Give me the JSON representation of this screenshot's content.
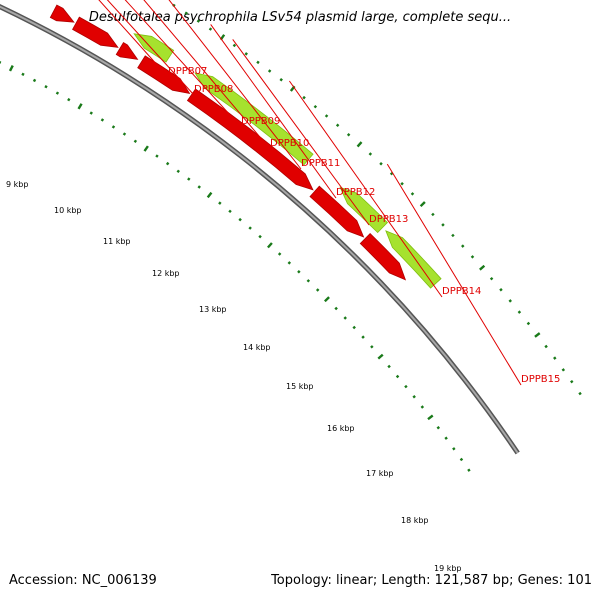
{
  "title": "Desulfotalea psychrophila LSv54 plasmid large, complete sequ...",
  "footer": {
    "accession": "Accession: NC_006139",
    "summary": "Topology: linear; Length: 121,587 bp; Genes: 101"
  },
  "colors": {
    "gene_red": "#e00000",
    "gene_green": "#a6e22e",
    "backbone": "#7a7a7a",
    "tick_green": "#1a7a1a"
  },
  "genes": [
    {
      "label": "",
      "strand": "forward",
      "color": "red"
    },
    {
      "label": "DPPB07",
      "strand": "forward",
      "color": "red"
    },
    {
      "label": "DPPB08",
      "strand": "forward",
      "color": "red"
    },
    {
      "label": "DPPB09",
      "strand": "forward",
      "color": "red"
    },
    {
      "label": "DPPB10",
      "strand": "forward",
      "color": "red"
    },
    {
      "label": "DPPB11",
      "strand": "forward",
      "color": "red"
    },
    {
      "label": "DPPB12",
      "strand": "reverse",
      "color": "green"
    },
    {
      "label": "DPPB13",
      "strand": "forward",
      "color": "red"
    },
    {
      "label": "DPPB14",
      "strand": "reverse",
      "color": "green"
    },
    {
      "label": "",
      "strand": "forward",
      "color": "red"
    },
    {
      "label": "DPPB15",
      "strand": "forward",
      "color": "red"
    },
    {
      "label": "",
      "strand": "reverse",
      "color": "green"
    },
    {
      "label": "",
      "strand": "forward",
      "color": "red"
    },
    {
      "label": "",
      "strand": "reverse",
      "color": "green"
    }
  ],
  "scale_labels": [
    "9 kbp",
    "10 kbp",
    "11 kbp",
    "12 kbp",
    "13 kbp",
    "14 kbp",
    "15 kbp",
    "16 kbp",
    "17 kbp",
    "18 kbp",
    "19 kbp"
  ]
}
